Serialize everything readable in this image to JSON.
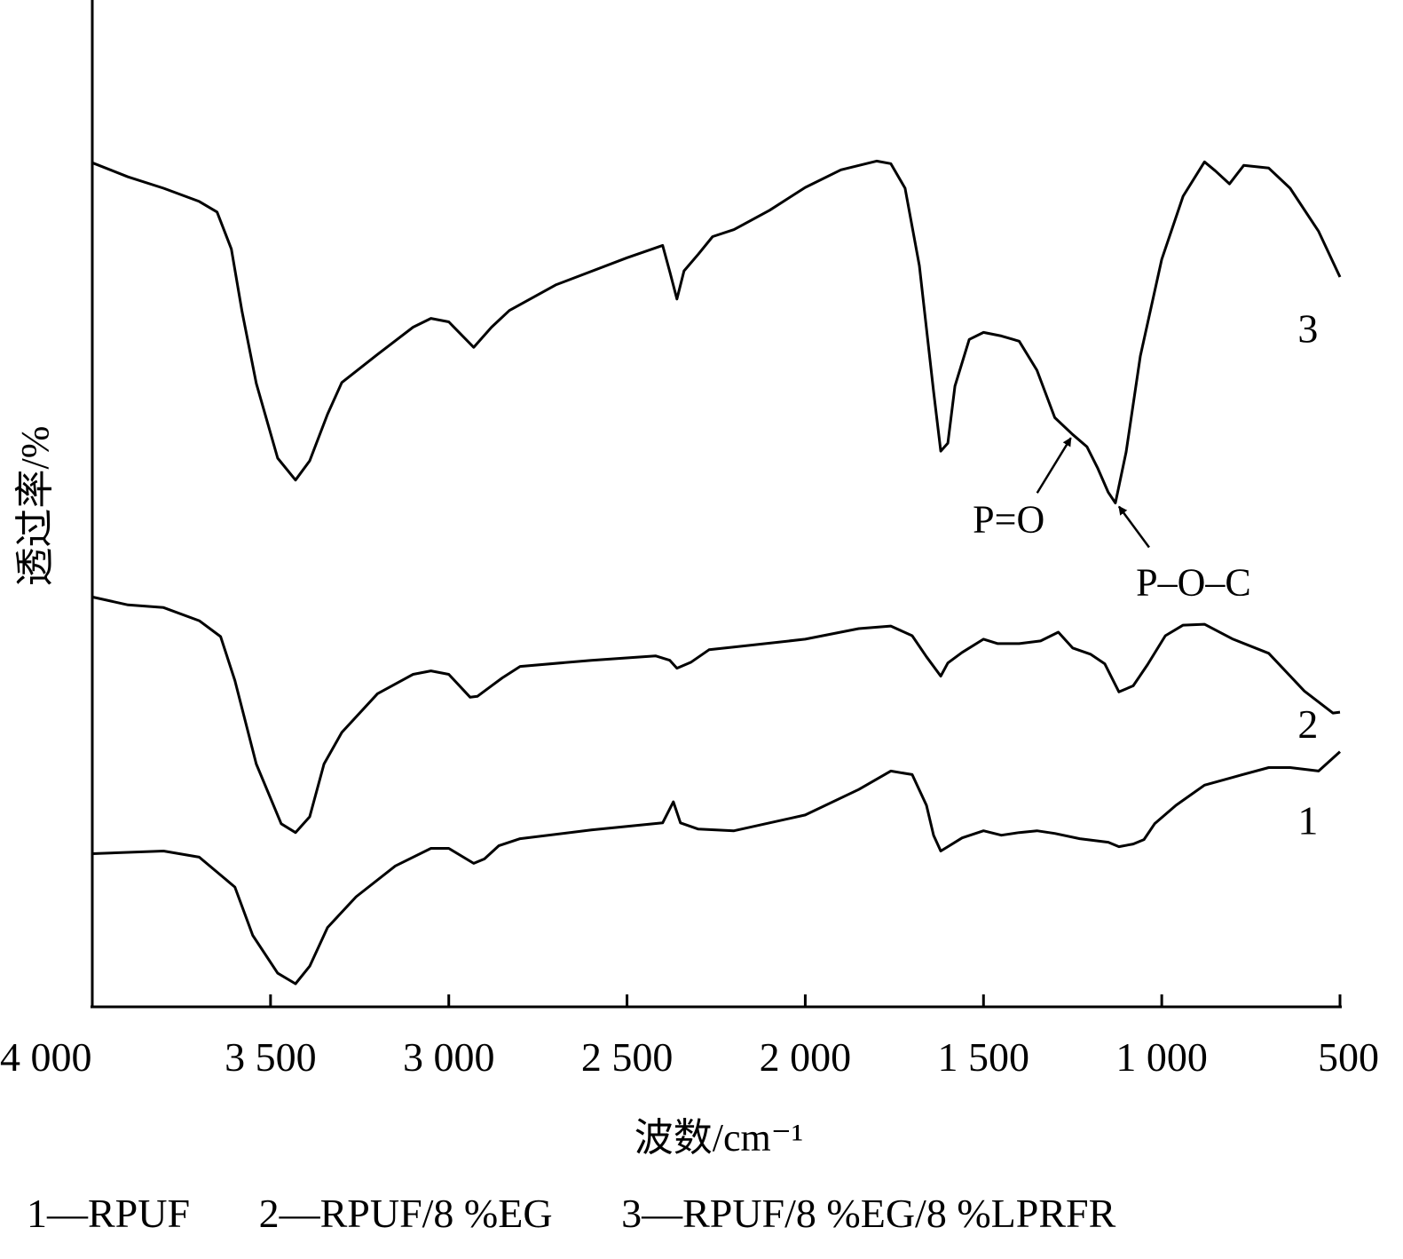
{
  "chart_data": {
    "type": "line",
    "xlabel": "波数/cm⁻¹",
    "ylabel": "透过率/%",
    "xlim": [
      4000,
      500
    ],
    "x_reversed": true,
    "ylim": [
      0,
      100
    ],
    "grid": false,
    "xticks": [
      4000,
      3500,
      3000,
      2500,
      2000,
      1500,
      1000,
      500
    ],
    "xtick_labels": [
      "4 000",
      "3 500",
      "3 000",
      "2 500",
      "2 000",
      "1 500",
      "1 000",
      "500"
    ],
    "series": [
      {
        "name": "1",
        "values": [
          [
            4000,
            14.8
          ],
          [
            3800,
            15.1
          ],
          [
            3700,
            14.4
          ],
          [
            3600,
            11
          ],
          [
            3550,
            5.5
          ],
          [
            3480,
            1.2
          ],
          [
            3430,
            0
          ],
          [
            3390,
            2
          ],
          [
            3340,
            6.4
          ],
          [
            3260,
            9.9
          ],
          [
            3150,
            13.4
          ],
          [
            3050,
            15.4
          ],
          [
            3000,
            15.4
          ],
          [
            2930,
            13.7
          ],
          [
            2900,
            14.2
          ],
          [
            2860,
            15.7
          ],
          [
            2800,
            16.5
          ],
          [
            2600,
            17.5
          ],
          [
            2400,
            18.3
          ],
          [
            2370,
            20.7
          ],
          [
            2350,
            18.3
          ],
          [
            2300,
            17.6
          ],
          [
            2200,
            17.4
          ],
          [
            2000,
            19.2
          ],
          [
            1850,
            22.1
          ],
          [
            1760,
            24.2
          ],
          [
            1700,
            23.8
          ],
          [
            1660,
            20.3
          ],
          [
            1640,
            16.9
          ],
          [
            1620,
            15.1
          ],
          [
            1600,
            15.6
          ],
          [
            1560,
            16.6
          ],
          [
            1500,
            17.4
          ],
          [
            1450,
            16.9
          ],
          [
            1400,
            17.2
          ],
          [
            1350,
            17.4
          ],
          [
            1300,
            17.1
          ],
          [
            1230,
            16.5
          ],
          [
            1150,
            16.1
          ],
          [
            1120,
            15.6
          ],
          [
            1080,
            15.9
          ],
          [
            1050,
            16.4
          ],
          [
            1020,
            18.2
          ],
          [
            960,
            20.3
          ],
          [
            880,
            22.6
          ],
          [
            800,
            23.5
          ],
          [
            700,
            24.6
          ],
          [
            640,
            24.6
          ],
          [
            560,
            24.2
          ],
          [
            500,
            26.4
          ]
        ]
      },
      {
        "name": "2",
        "values": [
          [
            4000,
            44
          ],
          [
            3900,
            43.1
          ],
          [
            3800,
            42.8
          ],
          [
            3700,
            41.3
          ],
          [
            3640,
            39.5
          ],
          [
            3600,
            34.5
          ],
          [
            3540,
            25
          ],
          [
            3470,
            18.2
          ],
          [
            3430,
            17.2
          ],
          [
            3390,
            19
          ],
          [
            3350,
            25
          ],
          [
            3300,
            28.6
          ],
          [
            3200,
            33
          ],
          [
            3100,
            35.2
          ],
          [
            3050,
            35.6
          ],
          [
            3000,
            35.2
          ],
          [
            2940,
            32.6
          ],
          [
            2920,
            32.7
          ],
          [
            2880,
            33.9
          ],
          [
            2850,
            34.8
          ],
          [
            2800,
            36.1
          ],
          [
            2600,
            36.8
          ],
          [
            2420,
            37.3
          ],
          [
            2380,
            36.8
          ],
          [
            2360,
            35.9
          ],
          [
            2320,
            36.6
          ],
          [
            2270,
            38
          ],
          [
            2200,
            38.3
          ],
          [
            2000,
            39.2
          ],
          [
            1850,
            40.4
          ],
          [
            1760,
            40.7
          ],
          [
            1700,
            39.6
          ],
          [
            1660,
            37.2
          ],
          [
            1620,
            35
          ],
          [
            1600,
            36.5
          ],
          [
            1560,
            37.7
          ],
          [
            1500,
            39.2
          ],
          [
            1460,
            38.7
          ],
          [
            1400,
            38.7
          ],
          [
            1340,
            39
          ],
          [
            1290,
            40
          ],
          [
            1250,
            38.2
          ],
          [
            1200,
            37.5
          ],
          [
            1160,
            36.4
          ],
          [
            1120,
            33.2
          ],
          [
            1080,
            33.9
          ],
          [
            1040,
            36.3
          ],
          [
            990,
            39.6
          ],
          [
            940,
            40.8
          ],
          [
            880,
            40.9
          ],
          [
            800,
            39.2
          ],
          [
            700,
            37.6
          ],
          [
            600,
            33.3
          ],
          [
            520,
            30.8
          ],
          [
            500,
            30.9
          ]
        ]
      },
      {
        "name": "3",
        "values": [
          [
            4000,
            93.4
          ],
          [
            3900,
            91.8
          ],
          [
            3800,
            90.5
          ],
          [
            3700,
            89
          ],
          [
            3650,
            87.8
          ],
          [
            3610,
            83.6
          ],
          [
            3580,
            76.5
          ],
          [
            3540,
            68.3
          ],
          [
            3480,
            59.8
          ],
          [
            3430,
            57.3
          ],
          [
            3390,
            59.5
          ],
          [
            3340,
            64.8
          ],
          [
            3300,
            68.4
          ],
          [
            3200,
            71.6
          ],
          [
            3100,
            74.7
          ],
          [
            3050,
            75.7
          ],
          [
            3000,
            75.3
          ],
          [
            2930,
            72.4
          ],
          [
            2880,
            74.7
          ],
          [
            2830,
            76.6
          ],
          [
            2700,
            79.5
          ],
          [
            2500,
            82.6
          ],
          [
            2400,
            84
          ],
          [
            2380,
            81
          ],
          [
            2360,
            77.9
          ],
          [
            2340,
            81.1
          ],
          [
            2300,
            83
          ],
          [
            2260,
            85
          ],
          [
            2200,
            85.8
          ],
          [
            2100,
            88
          ],
          [
            2000,
            90.6
          ],
          [
            1900,
            92.6
          ],
          [
            1800,
            93.6
          ],
          [
            1760,
            93.3
          ],
          [
            1720,
            90.5
          ],
          [
            1680,
            81.7
          ],
          [
            1640,
            67.4
          ],
          [
            1620,
            60.6
          ],
          [
            1600,
            61.5
          ],
          [
            1580,
            68
          ],
          [
            1540,
            73.3
          ],
          [
            1500,
            74.1
          ],
          [
            1450,
            73.7
          ],
          [
            1400,
            73.1
          ],
          [
            1350,
            69.8
          ],
          [
            1300,
            64.4
          ],
          [
            1250,
            62.5
          ],
          [
            1210,
            61.1
          ],
          [
            1180,
            58.7
          ],
          [
            1150,
            55.9
          ],
          [
            1130,
            54.7
          ],
          [
            1100,
            60.5
          ],
          [
            1060,
            71.4
          ],
          [
            1000,
            82.4
          ],
          [
            940,
            89.6
          ],
          [
            880,
            93.5
          ],
          [
            850,
            92.5
          ],
          [
            810,
            91
          ],
          [
            770,
            93.1
          ],
          [
            700,
            92.8
          ],
          [
            640,
            90.5
          ],
          [
            560,
            85.6
          ],
          [
            500,
            80.4
          ]
        ]
      }
    ],
    "series_tags": [
      {
        "text": "3",
        "x": 590,
        "y": 73
      },
      {
        "text": "2",
        "x": 590,
        "y": 28
      },
      {
        "text": "1",
        "x": 590,
        "y": 17
      }
    ],
    "annotations": [
      {
        "text": "P=O",
        "x": 1250,
        "y": 62.5
      },
      {
        "text": "P–O–C",
        "x": 1130,
        "y": 54.7
      }
    ],
    "legend": {
      "placement": "bottom",
      "items": [
        "1—RPUF",
        "2—RPUF/8 %EG",
        "3—RPUF/8 %EG/8 %LPRFR"
      ]
    }
  }
}
